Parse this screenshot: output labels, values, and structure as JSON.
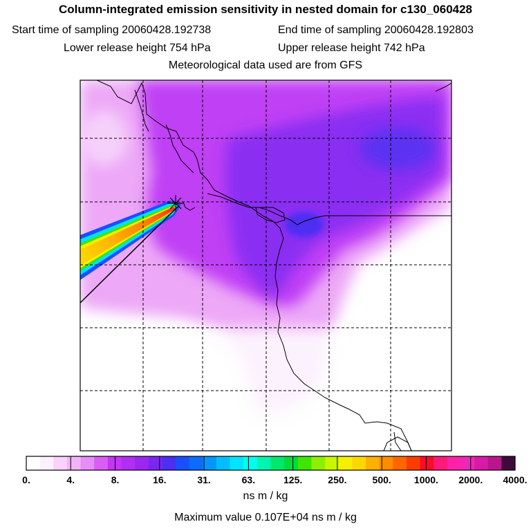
{
  "header": {
    "title": "Column-integrated emission sensitivity in nested domain for c130_060428",
    "start_label": "Start time of sampling 20060428.192738",
    "end_label": "End time of sampling 20060428.192803",
    "lower_label": "Lower release height  754 hPa",
    "upper_label": "Upper release height  742 hPa",
    "met_label": "Meteorological data used are from GFS"
  },
  "legend": {
    "ticks": [
      "0.",
      "4.",
      "8.",
      "16.",
      "31.",
      "63.",
      "125.",
      "250.",
      "500.",
      "1000.",
      "2000.",
      "4000."
    ],
    "colors": [
      "#ffffff",
      "#fdf0fd",
      "#f8d2fb",
      "#f2b3f8",
      "#e88cf6",
      "#d95ef5",
      "#c535f5",
      "#b12ef2",
      "#9c27f0",
      "#7b26f0",
      "#4b2ff2",
      "#1a4fff",
      "#0b6cff",
      "#0595ff",
      "#00bfff",
      "#00e5ff",
      "#00ffee",
      "#00f5b0",
      "#00e86c",
      "#00dc3a",
      "#3ee600",
      "#8cf000",
      "#c8f500",
      "#f5f000",
      "#ffd700",
      "#ffb000",
      "#ff8c00",
      "#ff6600",
      "#ff3c00",
      "#ff0a28",
      "#ff1a7a",
      "#ff22a8",
      "#f026b8",
      "#d81aa8",
      "#b8178c",
      "#3d0a3a"
    ],
    "unit": "ns m / kg",
    "max_label": "Maximum value  0.107E+04 ns m / kg"
  }
}
